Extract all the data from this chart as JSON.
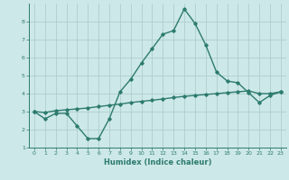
{
  "title": "",
  "xlabel": "Humidex (Indice chaleur)",
  "x_values": [
    0,
    1,
    2,
    3,
    4,
    5,
    6,
    7,
    8,
    9,
    10,
    11,
    12,
    13,
    14,
    15,
    16,
    17,
    18,
    19,
    20,
    21,
    22,
    23
  ],
  "line1_y": [
    3.0,
    2.6,
    2.9,
    2.9,
    2.2,
    1.5,
    1.5,
    2.6,
    4.1,
    4.8,
    5.7,
    6.5,
    7.3,
    7.5,
    8.7,
    7.9,
    6.7,
    5.2,
    4.7,
    4.6,
    4.05,
    3.5,
    3.9,
    4.1
  ],
  "line2_y": [
    3.0,
    2.95,
    3.05,
    3.1,
    3.15,
    3.2,
    3.28,
    3.35,
    3.42,
    3.5,
    3.57,
    3.63,
    3.7,
    3.78,
    3.85,
    3.9,
    3.95,
    4.0,
    4.05,
    4.1,
    4.15,
    4.0,
    4.0,
    4.1
  ],
  "line_color": "#2d7b6f",
  "bg_color": "#cde8e8",
  "grid_color": "#aecece",
  "ylim": [
    1,
    9
  ],
  "yticks": [
    1,
    2,
    3,
    4,
    5,
    6,
    7,
    8
  ],
  "xlim": [
    -0.5,
    23.5
  ],
  "marker": "D",
  "markersize": 1.8,
  "linewidth": 1.0
}
